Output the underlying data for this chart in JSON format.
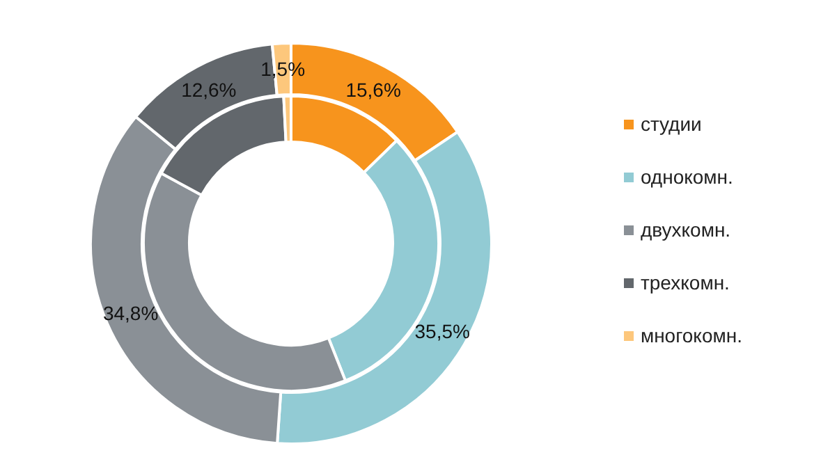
{
  "chart_data": {
    "type": "donut",
    "categories": [
      "студии",
      "однокомн.",
      "двухкомн.",
      "трехкомн.",
      "многокомн."
    ],
    "colors": [
      "#f7941d",
      "#92cbd4",
      "#8a9096",
      "#62676c",
      "#fdc77c"
    ],
    "series": [
      {
        "values": [
          15.6,
          35.5,
          34.8,
          12.6,
          1.5
        ],
        "value_labels": [
          "15,6%",
          "35,5%",
          "34,8%",
          "12,6%",
          "1,5%"
        ]
      },
      {
        "values": [
          12.7,
          31.3,
          38.9,
          16.3,
          0.8
        ]
      }
    ],
    "legend": "right"
  }
}
